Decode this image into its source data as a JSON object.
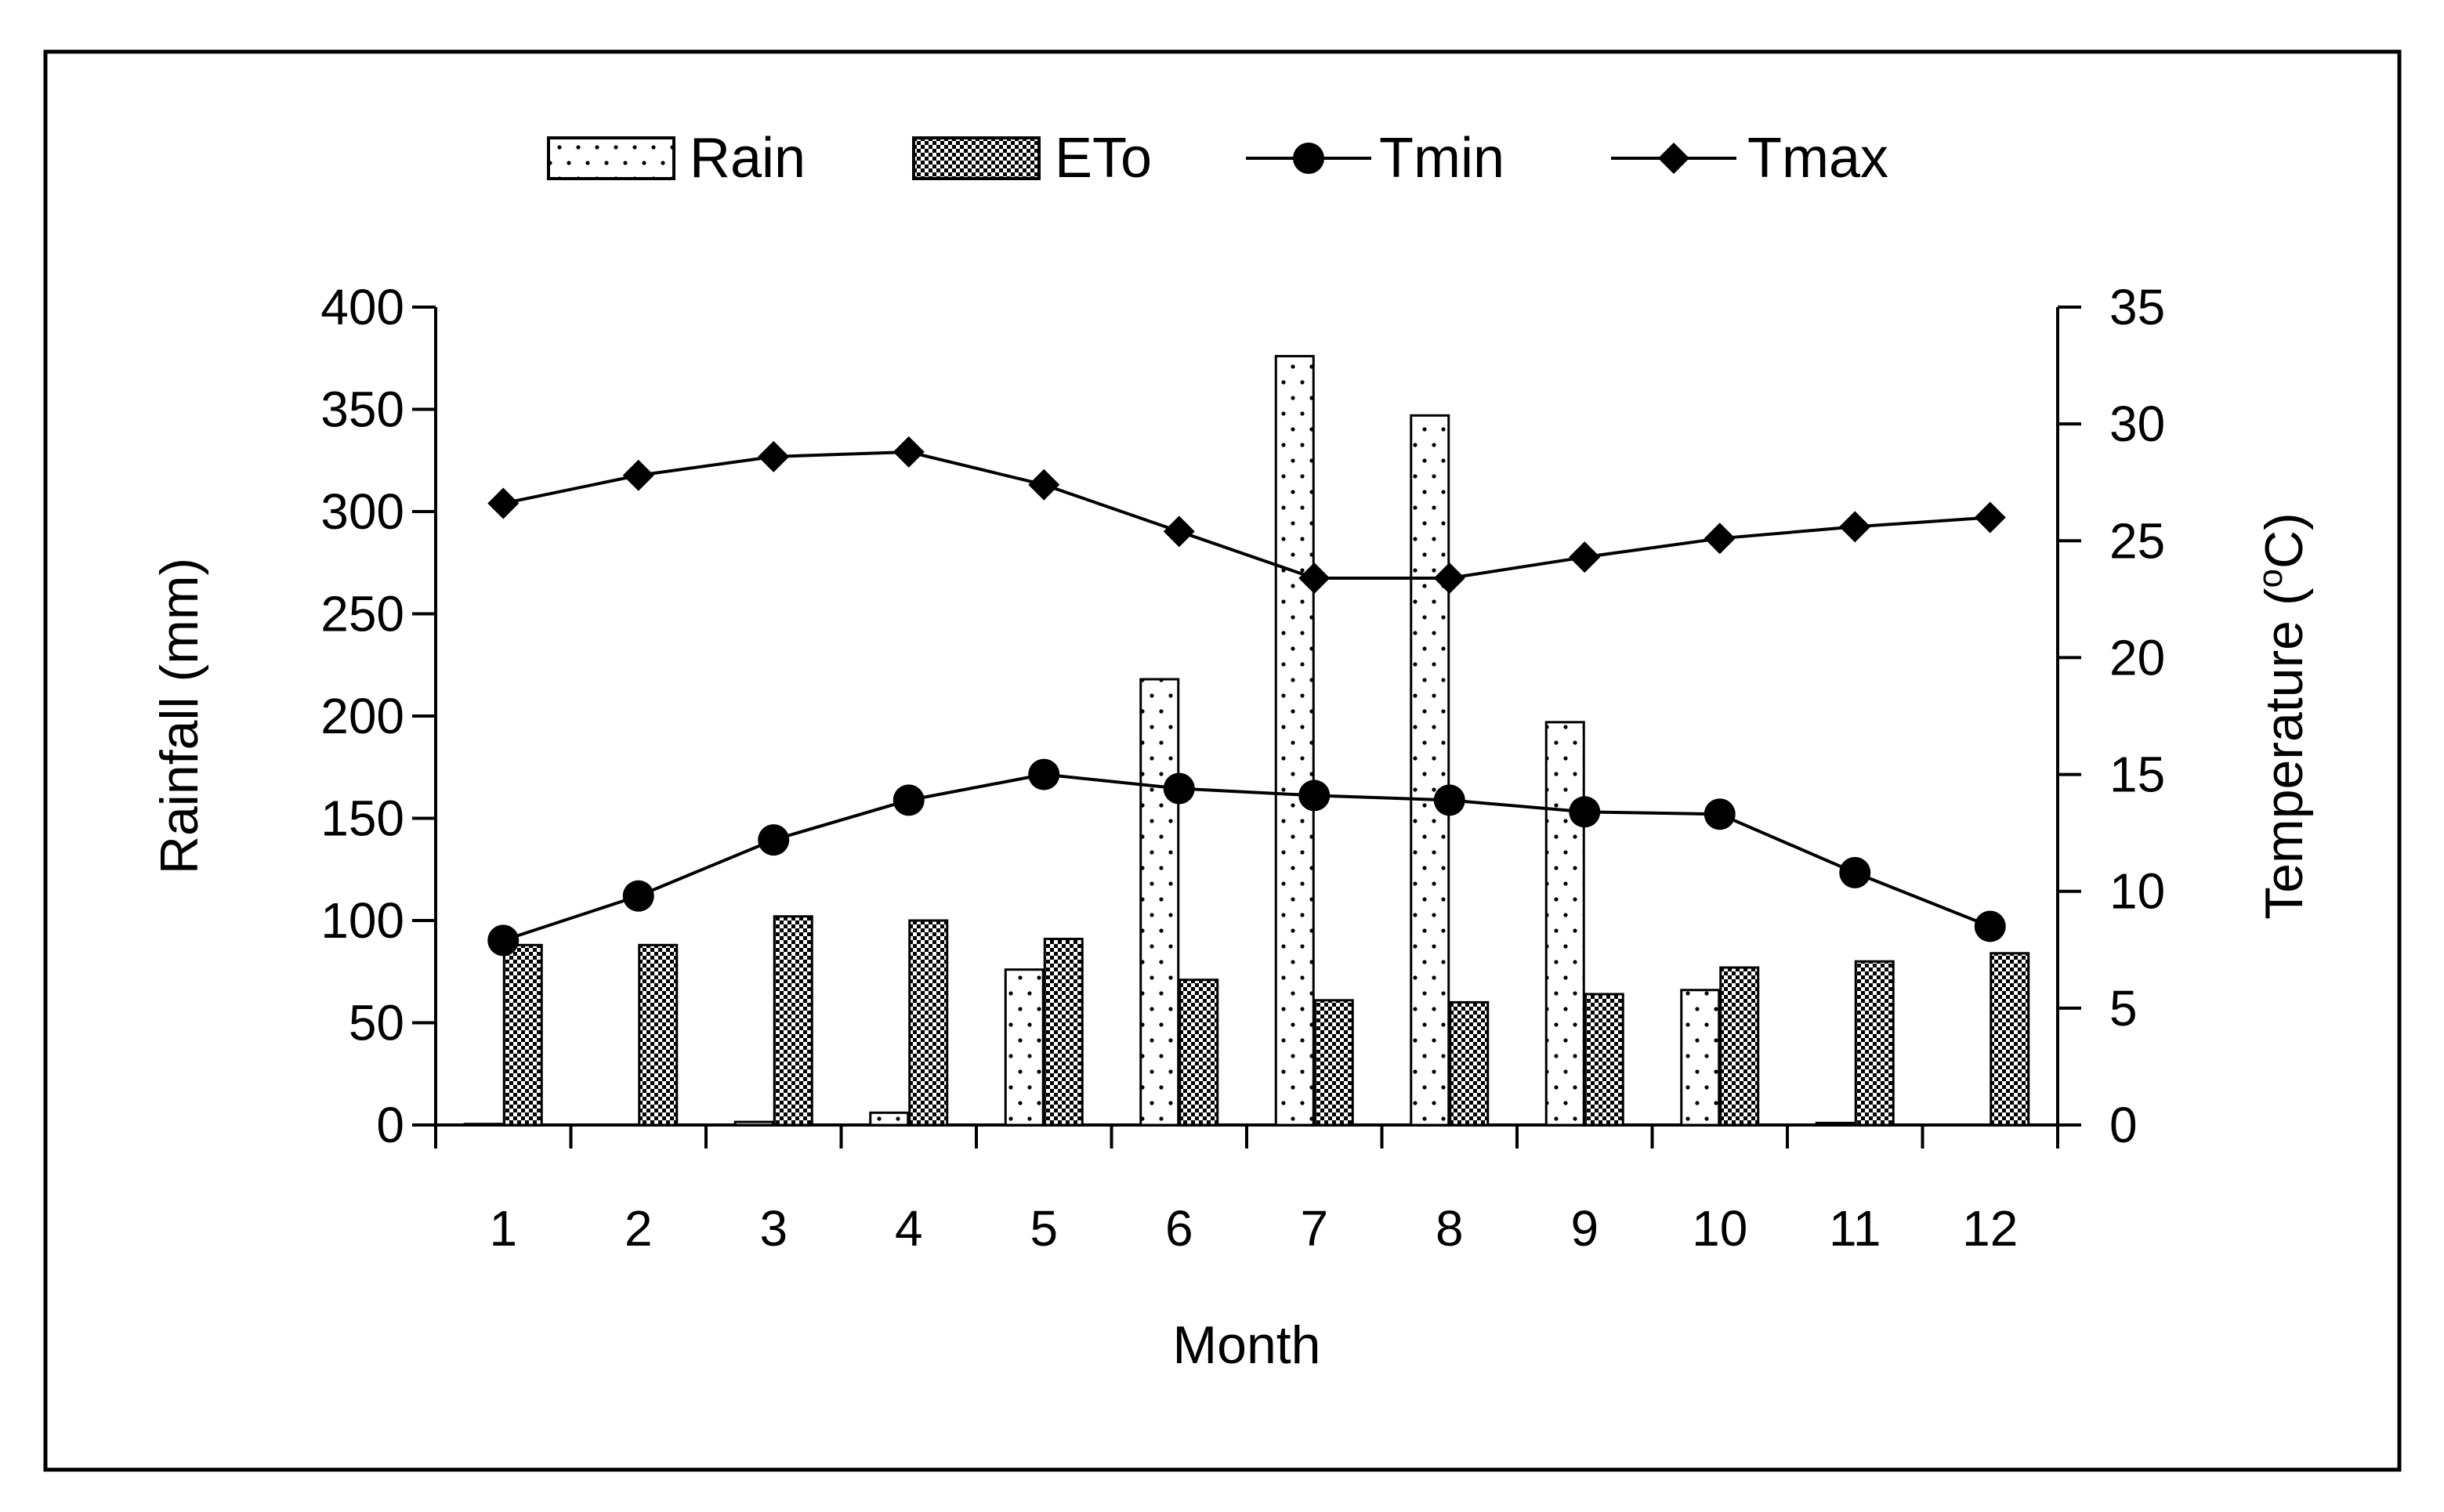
{
  "chart_data": {
    "type": "bar",
    "title": "",
    "xlabel": "Month",
    "ylabel": "Rainfall (mm)",
    "y2label_main": "Temperature (",
    "y2label_sup": "o",
    "y2label_end": "C)",
    "ylim": [
      0,
      400
    ],
    "y2lim": [
      0,
      35
    ],
    "yticks": [
      "0",
      "50",
      "100",
      "150",
      "200",
      "250",
      "300",
      "350",
      "400"
    ],
    "y2ticks": [
      "0",
      "5",
      "10",
      "15",
      "20",
      "25",
      "30",
      "35"
    ],
    "categories": [
      "1",
      "2",
      "3",
      "4",
      "5",
      "6",
      "7",
      "8",
      "9",
      "10",
      "11",
      "12"
    ],
    "legend_position": "top",
    "series": [
      {
        "name": "Rain",
        "kind": "bar",
        "axis": "left",
        "pattern": "dots",
        "values": [
          0.5,
          0,
          1.5,
          6,
          76,
          218,
          376,
          347,
          197,
          66,
          1,
          0
        ]
      },
      {
        "name": "ETo",
        "kind": "bar",
        "axis": "left",
        "pattern": "checker",
        "values": [
          88,
          88,
          102,
          100,
          91,
          71,
          61,
          60,
          64,
          77,
          80,
          84
        ]
      },
      {
        "name": "Tmin",
        "kind": "line",
        "axis": "right",
        "marker": "circle",
        "values": [
          7.9,
          9.8,
          12.2,
          13.9,
          15.0,
          14.4,
          14.1,
          13.9,
          13.4,
          13.3,
          10.8,
          8.5
        ]
      },
      {
        "name": "Tmax",
        "kind": "line",
        "axis": "right",
        "marker": "diamond",
        "values": [
          26.6,
          27.8,
          28.6,
          28.8,
          27.4,
          25.4,
          23.4,
          23.4,
          24.3,
          25.1,
          25.6,
          26.0
        ]
      }
    ],
    "colors": {
      "ink": "#000000",
      "background": "#ffffff"
    }
  }
}
